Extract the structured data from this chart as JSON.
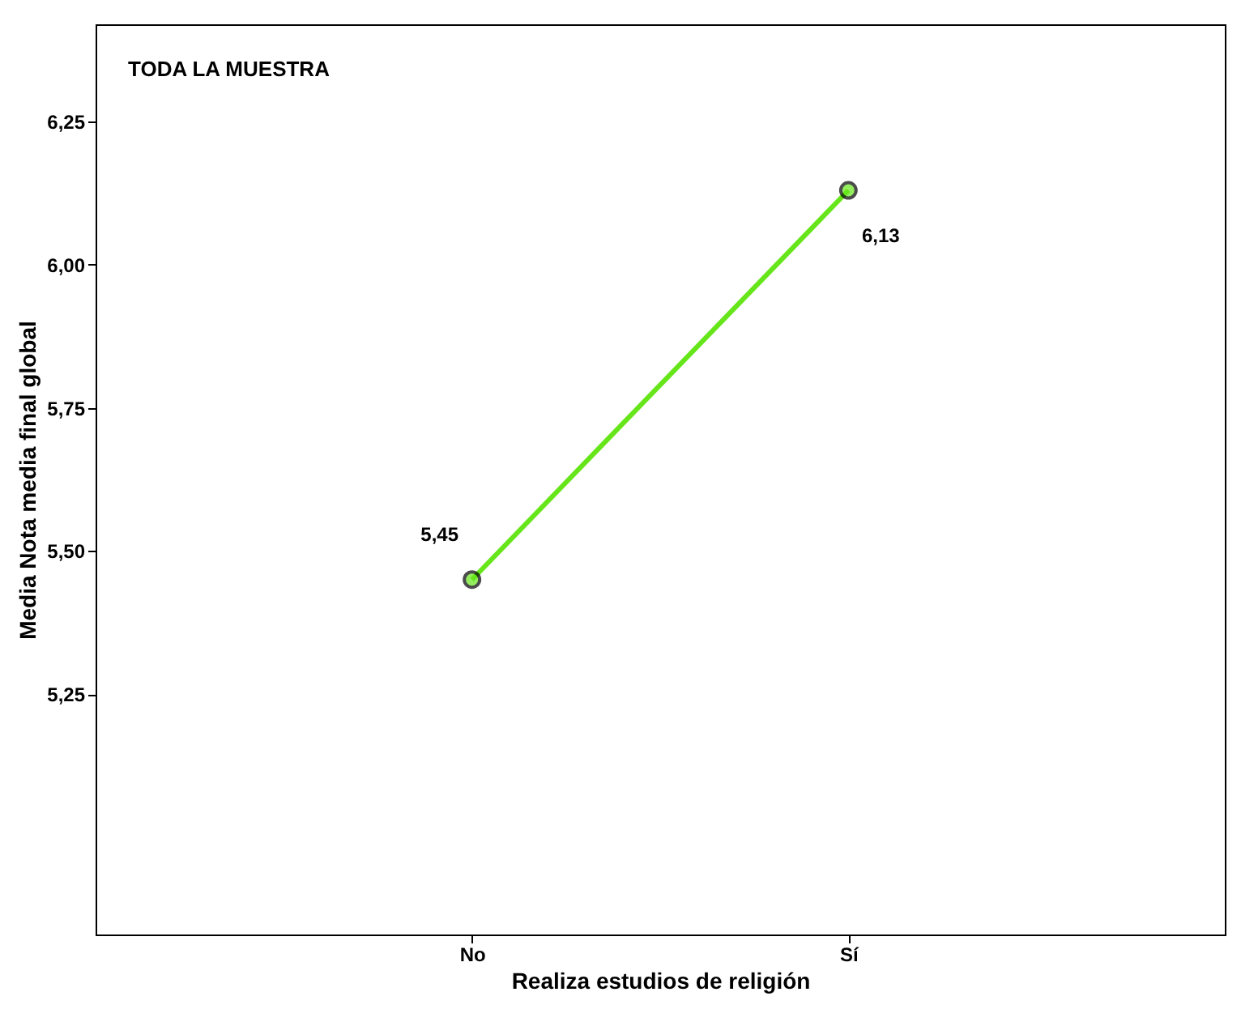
{
  "chart_data": {
    "type": "line",
    "title": "TODA LA MUESTRA",
    "xlabel": "Realiza estudios de religión",
    "ylabel": "Media Nota media final global",
    "categories": [
      "No",
      "Sí"
    ],
    "series": [
      {
        "color": "#66e61a",
        "values": [
          5.45,
          6.13
        ],
        "value_labels": [
          "5,45",
          "6,13"
        ]
      }
    ],
    "ylim": [
      4.83,
      6.42
    ],
    "yticks": [
      {
        "value": 5.25,
        "label": "5,25"
      },
      {
        "value": 5.5,
        "label": "5,50"
      },
      {
        "value": 5.75,
        "label": "5,75"
      },
      {
        "value": 6.0,
        "label": "6,00"
      },
      {
        "value": 6.25,
        "label": "6,25"
      }
    ],
    "grid": false,
    "legend": false,
    "marker": "circle",
    "line_style": "solid"
  }
}
